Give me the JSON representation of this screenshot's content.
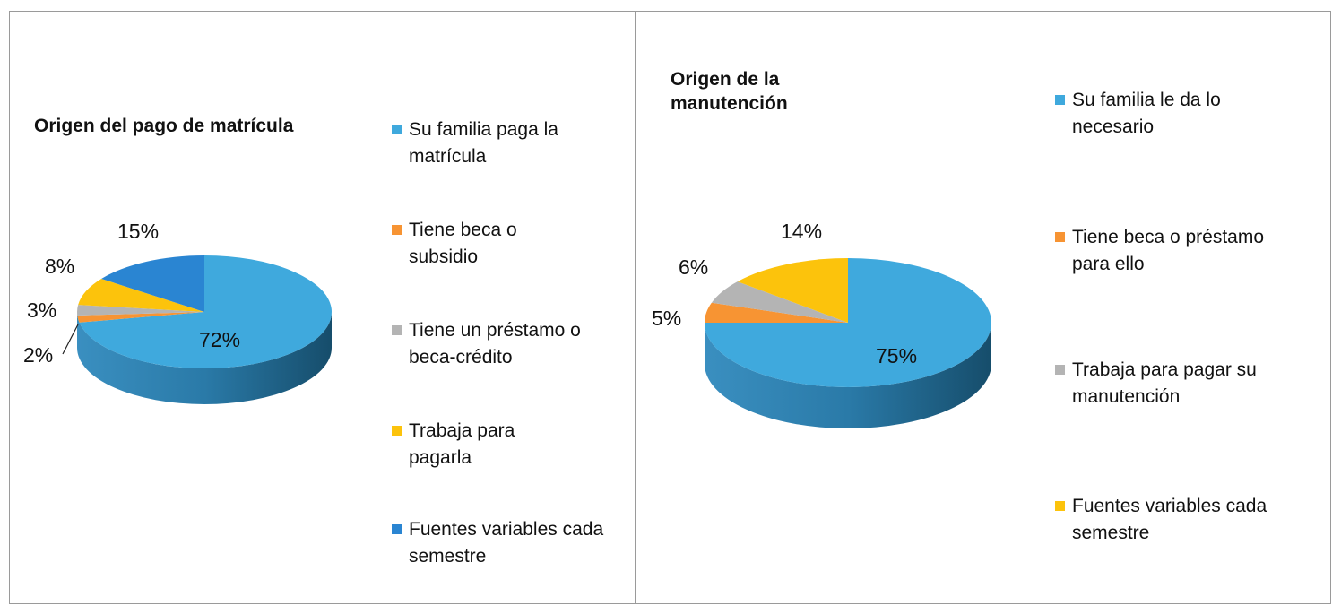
{
  "chart_data": [
    {
      "type": "pie",
      "style": "3d",
      "title": "Origen del pago de matrícula",
      "categories": [
        "Su familia paga la matrícula",
        "Tiene beca o subsidio",
        "Tiene un préstamo o beca-crédito",
        "Trabaja para pagarla",
        "Fuentes variables cada semestre"
      ],
      "values": [
        72,
        2,
        3,
        8,
        15
      ],
      "labels": [
        "72%",
        "2%",
        "3%",
        "8%",
        "15%"
      ],
      "colors": [
        "#3fa9dd",
        "#f79433",
        "#b4b4b4",
        "#fcc30c",
        "#2a85d2"
      ],
      "legend": "right"
    },
    {
      "type": "pie",
      "style": "3d",
      "title": "Origen de la manutención",
      "categories": [
        "Su familia le da lo necesario",
        "Tiene beca o préstamo para ello",
        "Trabaja para pagar su manutención",
        "Fuentes variables cada semestre"
      ],
      "values": [
        75,
        5,
        6,
        14
      ],
      "labels": [
        "75%",
        "5%",
        "6%",
        "14%"
      ],
      "colors": [
        "#3fa9dd",
        "#f79433",
        "#b4b4b4",
        "#fcc30c"
      ],
      "legend": "right"
    }
  ]
}
